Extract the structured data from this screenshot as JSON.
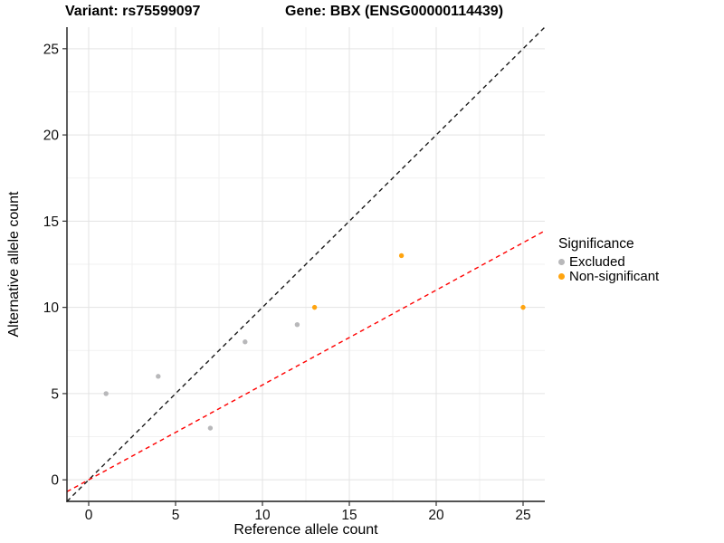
{
  "header": {
    "title_left": "Variant: rs75599097",
    "title_right": "Gene: BBX (ENSG00000114439)"
  },
  "chart_data": {
    "type": "scatter",
    "title": "Variant: rs75599097 / Gene: BBX (ENSG00000114439)",
    "xlabel": "Reference allele count",
    "ylabel": "Alternative allele count",
    "xlim": [
      -1.25,
      26.25
    ],
    "ylim": [
      -1.25,
      26.25
    ],
    "xticks": [
      0,
      5,
      10,
      15,
      20,
      25
    ],
    "yticks": [
      0,
      5,
      10,
      15,
      20,
      25
    ],
    "minor_ticks": [
      2.5,
      7.5,
      12.5,
      17.5,
      22.5
    ],
    "grid": "major+minor",
    "colors": {
      "major_grid": "#e3e3e3",
      "minor_grid": "#f1f1f1",
      "axis": "#1a1a1a",
      "tick_label": "#111111"
    },
    "series": [
      {
        "name": "Excluded",
        "color": "#b8b8ba",
        "points": [
          [
            1,
            5
          ],
          [
            4,
            6
          ],
          [
            7,
            3
          ],
          [
            9,
            8
          ],
          [
            12,
            9
          ]
        ]
      },
      {
        "name": "Non-significant",
        "color": "#ffa40f",
        "points": [
          [
            13,
            10
          ],
          [
            18,
            13
          ],
          [
            25,
            10
          ]
        ]
      }
    ],
    "lines": [
      {
        "name": "identity-line",
        "color": "#1a1a1a",
        "slope": 1,
        "intercept": 0,
        "dash": "5,4"
      },
      {
        "name": "ratio-line",
        "color": "#ff0000",
        "slope": 0.55,
        "intercept": 0,
        "dash": "5,4"
      }
    ],
    "legend": {
      "title": "Significance",
      "position": "right",
      "entries": [
        "Excluded",
        "Non-significant"
      ]
    }
  }
}
